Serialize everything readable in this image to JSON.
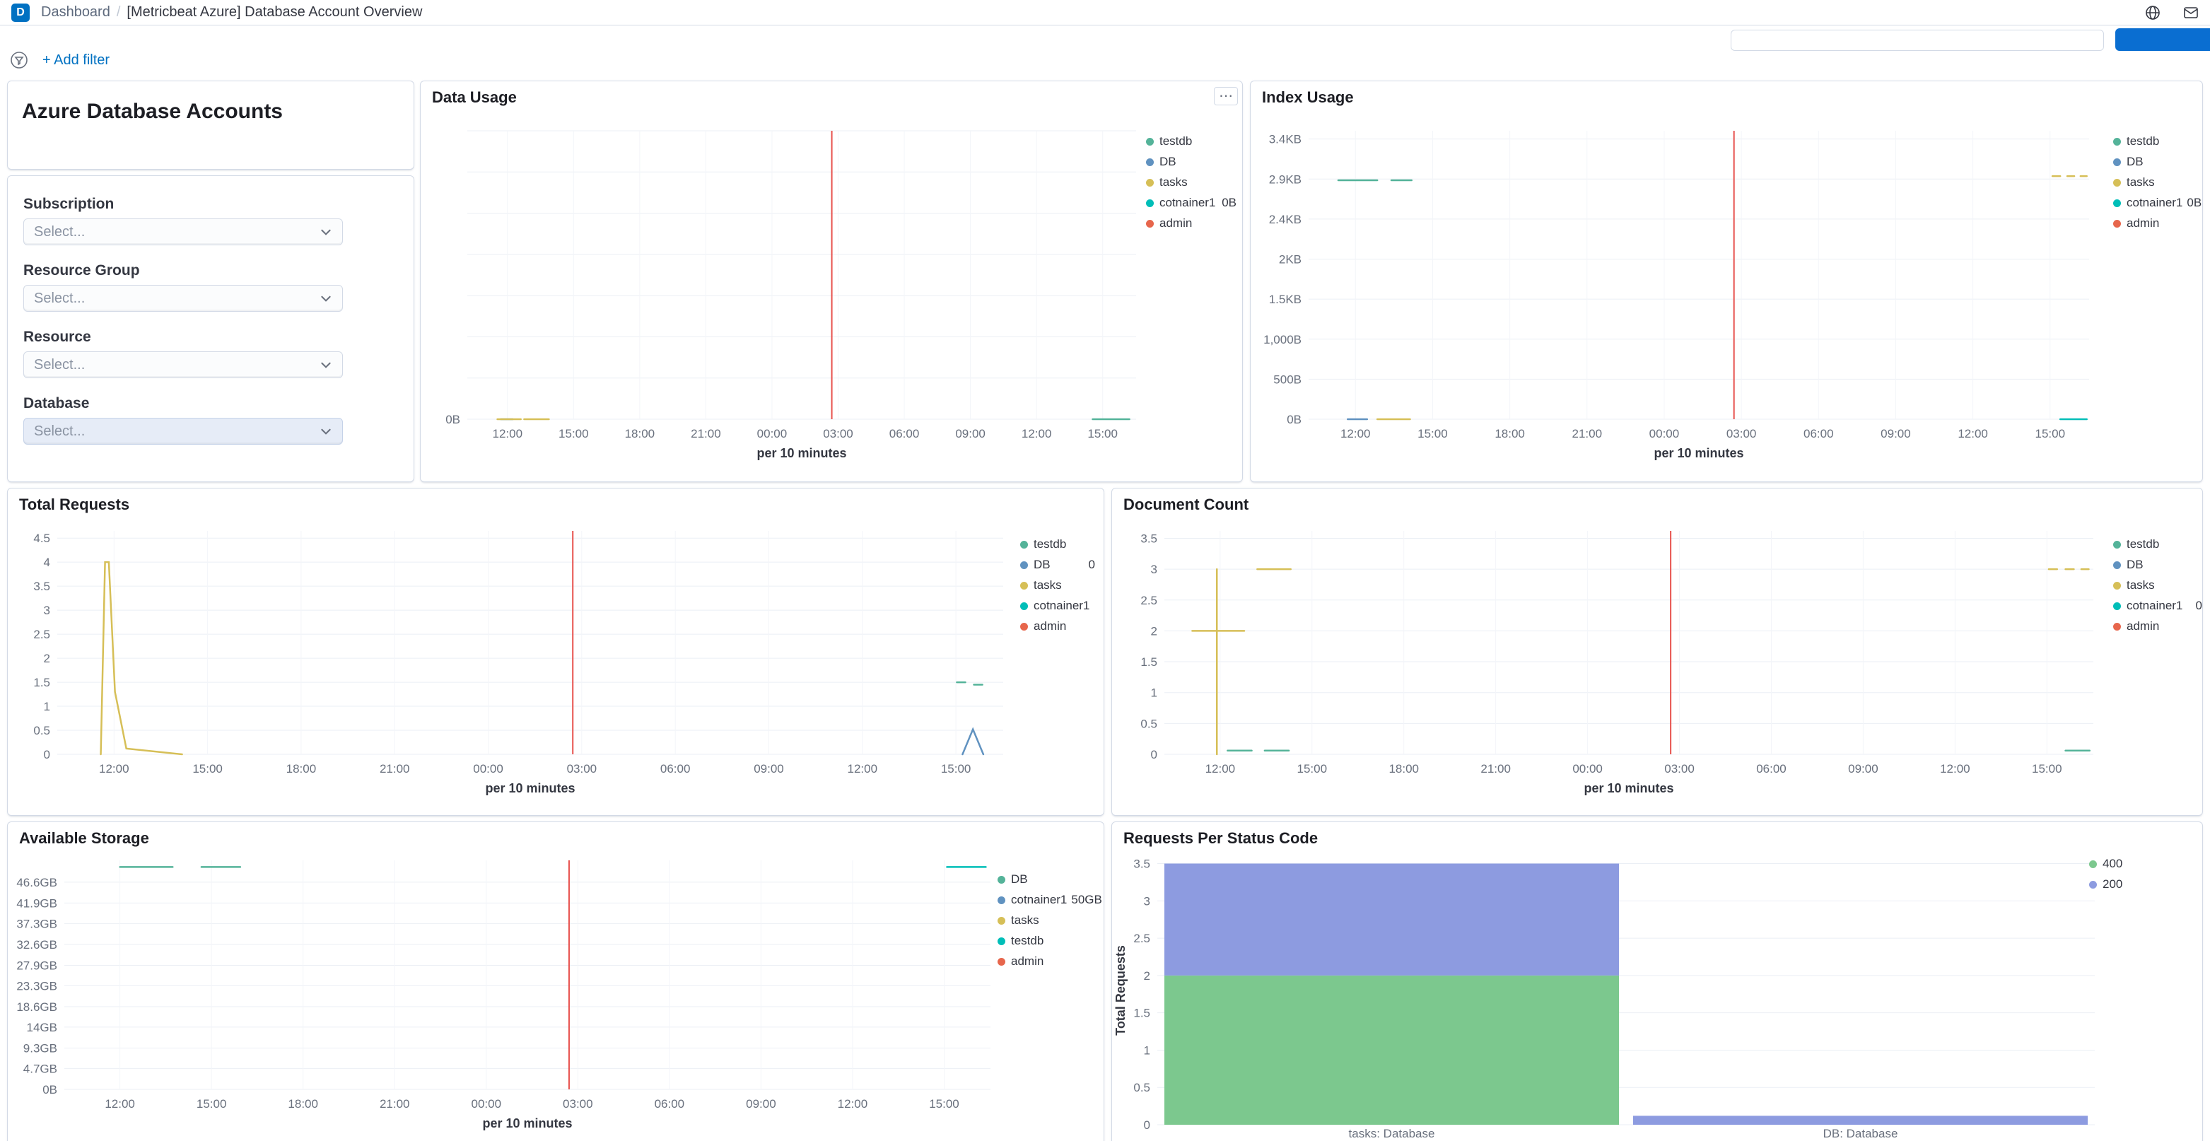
{
  "header": {
    "logo_letter": "D",
    "breadcrumbs": {
      "parent": "Dashboard",
      "separator": "/",
      "current": "[Metricbeat Azure] Database Account Overview"
    }
  },
  "icons": {
    "panel_options_glyph": "⋯"
  },
  "filter_bar": {
    "add_filter_label": "+ Add filter"
  },
  "markdown_panel": {
    "title": "Azure Database Accounts"
  },
  "controls_panel": {
    "controls": [
      {
        "label": "Subscription",
        "placeholder": "Select...",
        "highlighted": false
      },
      {
        "label": "Resource Group",
        "placeholder": "Select...",
        "highlighted": false
      },
      {
        "label": "Resource",
        "placeholder": "Select...",
        "highlighted": false
      },
      {
        "label": "Database",
        "placeholder": "Select...",
        "highlighted": true
      }
    ]
  },
  "colors": {
    "accent_blue": "#0071C2",
    "annotation_red": "#E7514D",
    "border": "#D3DAE6"
  },
  "chart_data": [
    {
      "id": "data_usage",
      "type": "line",
      "title": "Data Usage",
      "x_ticks": [
        "12:00",
        "15:00",
        "18:00",
        "21:00",
        "00:00",
        "03:00",
        "06:00",
        "09:00",
        "12:00",
        "15:00"
      ],
      "xlabel": "per 10 minutes",
      "ylim": [
        0,
        1
      ],
      "grid_rows": 7,
      "y_ticks": [
        {
          "label": "0B",
          "value": 0
        }
      ],
      "annotation": {
        "x": 0.545,
        "color": "#E7514D"
      },
      "series": [
        {
          "name": "testdb",
          "color": "#54B399",
          "segments": [
            [
              [
                0.935,
                0
              ],
              [
                0.99,
                0
              ]
            ]
          ]
        },
        {
          "name": "DB",
          "color": "#6092C0",
          "segments": [
            [
              [
                0.05,
                0
              ],
              [
                0.068,
                0
              ]
            ]
          ]
        },
        {
          "name": "tasks",
          "color": "#D6BF57",
          "segments": [
            [
              [
                0.045,
                0
              ],
              [
                0.08,
                0
              ]
            ],
            [
              [
                0.085,
                0
              ],
              [
                0.122,
                0
              ]
            ]
          ]
        },
        {
          "name": "cotnainer1",
          "color": "#00BEB8",
          "segments": []
        },
        {
          "name": "admin",
          "color": "#E7664C",
          "segments": []
        }
      ],
      "legend": [
        {
          "label": "testdb",
          "color": "#54B399"
        },
        {
          "label": "DB",
          "color": "#6092C0"
        },
        {
          "label": "tasks",
          "color": "#D6BF57"
        },
        {
          "label": "cotnainer1",
          "color": "#00BEB8",
          "value": "0B"
        },
        {
          "label": "admin",
          "color": "#E7664C"
        }
      ]
    },
    {
      "id": "index_usage",
      "type": "line",
      "title": "Index Usage",
      "x_ticks": [
        "12:00",
        "15:00",
        "18:00",
        "21:00",
        "00:00",
        "03:00",
        "06:00",
        "09:00",
        "12:00",
        "15:00"
      ],
      "xlabel": "per 10 minutes",
      "ylim": [
        0,
        3500
      ],
      "y_ticks": [
        {
          "label": "3.4KB",
          "value": 3400
        },
        {
          "label": "2.9KB",
          "value": 2914
        },
        {
          "label": "2.4KB",
          "value": 2429
        },
        {
          "label": "2KB",
          "value": 1943
        },
        {
          "label": "1.5KB",
          "value": 1457
        },
        {
          "label": "1,000B",
          "value": 971
        },
        {
          "label": "500B",
          "value": 486
        },
        {
          "label": "0B",
          "value": 0
        }
      ],
      "annotation": {
        "x": 0.545,
        "color": "#E7514D"
      },
      "series": [
        {
          "name": "testdb",
          "color": "#54B399",
          "segments": [
            [
              [
                0.038,
                2900
              ],
              [
                0.088,
                2900
              ]
            ],
            [
              [
                0.106,
                2900
              ],
              [
                0.132,
                2900
              ]
            ]
          ]
        },
        {
          "name": "DB",
          "color": "#6092C0",
          "segments": [
            [
              [
                0.05,
                0
              ],
              [
                0.075,
                0
              ]
            ]
          ]
        },
        {
          "name": "tasks",
          "color": "#D6BF57",
          "segments": [
            [
              [
                0.088,
                0
              ],
              [
                0.13,
                0
              ]
            ],
            [
              [
                0.953,
                2950
              ],
              [
                0.963,
                2950
              ]
            ],
            [
              [
                0.972,
                2950
              ],
              [
                0.981,
                2950
              ]
            ],
            [
              [
                0.989,
                2950
              ],
              [
                0.997,
                2950
              ]
            ]
          ]
        },
        {
          "name": "cotnainer1",
          "color": "#00BEB8",
          "segments": [
            [
              [
                0.963,
                0
              ],
              [
                0.997,
                0
              ]
            ]
          ]
        },
        {
          "name": "admin",
          "color": "#E7664C",
          "segments": []
        }
      ],
      "legend": [
        {
          "label": "testdb",
          "color": "#54B399"
        },
        {
          "label": "DB",
          "color": "#6092C0"
        },
        {
          "label": "tasks",
          "color": "#D6BF57"
        },
        {
          "label": "cotnainer1",
          "color": "#00BEB8",
          "value": "0B"
        },
        {
          "label": "admin",
          "color": "#E7664C"
        }
      ]
    },
    {
      "id": "total_requests",
      "type": "line",
      "title": "Total Requests",
      "x_ticks": [
        "12:00",
        "15:00",
        "18:00",
        "21:00",
        "00:00",
        "03:00",
        "06:00",
        "09:00",
        "12:00",
        "15:00"
      ],
      "xlabel": "per 10 minutes",
      "ylim": [
        0,
        4.65
      ],
      "y_ticks": [
        {
          "label": "4.5",
          "value": 4.5
        },
        {
          "label": "4",
          "value": 4
        },
        {
          "label": "3.5",
          "value": 3.5
        },
        {
          "label": "3",
          "value": 3
        },
        {
          "label": "2.5",
          "value": 2.5
        },
        {
          "label": "2",
          "value": 2
        },
        {
          "label": "1.5",
          "value": 1.5
        },
        {
          "label": "1",
          "value": 1
        },
        {
          "label": "0.5",
          "value": 0.5
        },
        {
          "label": "0",
          "value": 0
        }
      ],
      "annotation": {
        "x": 0.545,
        "color": "#E7514D"
      },
      "series": [
        {
          "name": "testdb",
          "color": "#54B399",
          "segments": [
            [
              [
                0.951,
                1.5
              ],
              [
                0.96,
                1.5
              ]
            ],
            [
              [
                0.969,
                1.45
              ],
              [
                0.978,
                1.45
              ]
            ]
          ]
        },
        {
          "name": "DB",
          "color": "#6092C0",
          "segments": [
            [
              [
                0.957,
                0
              ],
              [
                0.968,
                0.52
              ],
              [
                0.979,
                0
              ]
            ]
          ]
        },
        {
          "name": "tasks",
          "color": "#D6BF57",
          "segments": [
            [
              [
                0.046,
                0
              ],
              [
                0.0505,
                4
              ],
              [
                0.0545,
                4
              ],
              [
                0.061,
                1.3
              ],
              [
                0.073,
                0.12
              ],
              [
                0.132,
                0
              ]
            ]
          ]
        },
        {
          "name": "cotnainer1",
          "color": "#00BEB8",
          "segments": []
        },
        {
          "name": "admin",
          "color": "#E7664C",
          "segments": []
        }
      ],
      "legend": [
        {
          "label": "testdb",
          "color": "#54B399"
        },
        {
          "label": "DB",
          "color": "#6092C0",
          "value": "0"
        },
        {
          "label": "tasks",
          "color": "#D6BF57"
        },
        {
          "label": "cotnainer1",
          "color": "#00BEB8"
        },
        {
          "label": "admin",
          "color": "#E7664C"
        }
      ]
    },
    {
      "id": "document_count",
      "type": "line",
      "title": "Document Count",
      "x_ticks": [
        "12:00",
        "15:00",
        "18:00",
        "21:00",
        "00:00",
        "03:00",
        "06:00",
        "09:00",
        "12:00",
        "15:00"
      ],
      "xlabel": "per 10 minutes",
      "ylim": [
        0,
        3.62
      ],
      "y_ticks": [
        {
          "label": "3.5",
          "value": 3.5
        },
        {
          "label": "3",
          "value": 3
        },
        {
          "label": "2.5",
          "value": 2.5
        },
        {
          "label": "2",
          "value": 2
        },
        {
          "label": "1.5",
          "value": 1.5
        },
        {
          "label": "1",
          "value": 1
        },
        {
          "label": "0.5",
          "value": 0.5
        },
        {
          "label": "0",
          "value": 0
        }
      ],
      "annotation": {
        "x": 0.545,
        "color": "#E7514D"
      },
      "series": [
        {
          "name": "testdb",
          "color": "#54B399",
          "segments": [
            [
              [
                0.068,
                0.06
              ],
              [
                0.094,
                0.06
              ]
            ],
            [
              [
                0.108,
                0.06
              ],
              [
                0.134,
                0.06
              ]
            ],
            [
              [
                0.97,
                0.06
              ],
              [
                0.996,
                0.06
              ]
            ]
          ]
        },
        {
          "name": "DB",
          "color": "#6092C0",
          "segments": []
        },
        {
          "name": "tasks",
          "color": "#D6BF57",
          "segments": [
            [
              [
                0.03,
                2
              ],
              [
                0.086,
                2
              ]
            ],
            [
              [
                0.0565,
                3
              ],
              [
                0.0565,
                0
              ]
            ],
            [
              [
                0.1,
                3
              ],
              [
                0.136,
                3
              ]
            ],
            [
              [
                0.952,
                3
              ],
              [
                0.961,
                3
              ]
            ],
            [
              [
                0.97,
                3
              ],
              [
                0.979,
                3
              ]
            ],
            [
              [
                0.987,
                3
              ],
              [
                0.995,
                3
              ]
            ]
          ]
        },
        {
          "name": "cotnainer1",
          "color": "#00BEB8",
          "segments": []
        },
        {
          "name": "admin",
          "color": "#E7664C",
          "segments": []
        }
      ],
      "legend": [
        {
          "label": "testdb",
          "color": "#54B399"
        },
        {
          "label": "DB",
          "color": "#6092C0"
        },
        {
          "label": "tasks",
          "color": "#D6BF57"
        },
        {
          "label": "cotnainer1",
          "color": "#00BEB8",
          "value": "0"
        },
        {
          "label": "admin",
          "color": "#E7664C"
        }
      ]
    },
    {
      "id": "available_storage",
      "type": "line",
      "title": "Available Storage",
      "x_ticks": [
        "12:00",
        "15:00",
        "18:00",
        "21:00",
        "00:00",
        "03:00",
        "06:00",
        "09:00",
        "12:00",
        "15:00"
      ],
      "xlabel": "per 10 minutes",
      "ylim": [
        0,
        51.5
      ],
      "y_ticks": [
        {
          "label": "46.6GB",
          "value": 46.6
        },
        {
          "label": "41.9GB",
          "value": 41.9
        },
        {
          "label": "37.3GB",
          "value": 37.3
        },
        {
          "label": "32.6GB",
          "value": 32.6
        },
        {
          "label": "27.9GB",
          "value": 27.9
        },
        {
          "label": "23.3GB",
          "value": 23.3
        },
        {
          "label": "18.6GB",
          "value": 18.6
        },
        {
          "label": "14GB",
          "value": 14
        },
        {
          "label": "9.3GB",
          "value": 9.3
        },
        {
          "label": "4.7GB",
          "value": 4.7
        },
        {
          "label": "0B",
          "value": 0
        }
      ],
      "annotation": {
        "x": 0.545,
        "color": "#E7514D"
      },
      "series": [
        {
          "name": "DB",
          "color": "#54B399",
          "segments": [
            [
              [
                0.06,
                50
              ],
              [
                0.117,
                50
              ]
            ],
            [
              [
                0.148,
                50
              ],
              [
                0.19,
                50
              ]
            ]
          ]
        },
        {
          "name": "cotnainer1",
          "color": "#6092C0",
          "segments": []
        },
        {
          "name": "tasks",
          "color": "#D6BF57",
          "segments": []
        },
        {
          "name": "testdb",
          "color": "#00BEB8",
          "segments": [
            [
              [
                0.953,
                50
              ],
              [
                0.995,
                50
              ]
            ]
          ]
        },
        {
          "name": "admin",
          "color": "#E7664C",
          "segments": []
        }
      ],
      "legend": [
        {
          "label": "DB",
          "color": "#54B399"
        },
        {
          "label": "cotnainer1",
          "color": "#6092C0",
          "value": "50GB"
        },
        {
          "label": "tasks",
          "color": "#D6BF57"
        },
        {
          "label": "testdb",
          "color": "#00BEB8"
        },
        {
          "label": "admin",
          "color": "#E7664C"
        }
      ]
    },
    {
      "id": "requests_per_status_code",
      "type": "bar",
      "title": "Requests Per Status Code",
      "categories": [
        "tasks: Database",
        "DB: Database"
      ],
      "ylabel": "Total Requests",
      "ylim": [
        0,
        3.6
      ],
      "y_ticks": [
        {
          "label": "3.5",
          "value": 3.5
        },
        {
          "label": "3",
          "value": 3
        },
        {
          "label": "2.5",
          "value": 2.5
        },
        {
          "label": "2",
          "value": 2
        },
        {
          "label": "1.5",
          "value": 1.5
        },
        {
          "label": "1",
          "value": 1
        },
        {
          "label": "0.5",
          "value": 0.5
        },
        {
          "label": "0",
          "value": 0
        }
      ],
      "series": [
        {
          "name": "400",
          "color": "#7CC88E",
          "values": [
            2,
            0
          ]
        },
        {
          "name": "200",
          "color": "#8D9BE0",
          "values": [
            1.5,
            0.12
          ]
        }
      ],
      "legend": [
        {
          "label": "400",
          "color": "#7CC88E"
        },
        {
          "label": "200",
          "color": "#8D9BE0"
        }
      ]
    }
  ]
}
